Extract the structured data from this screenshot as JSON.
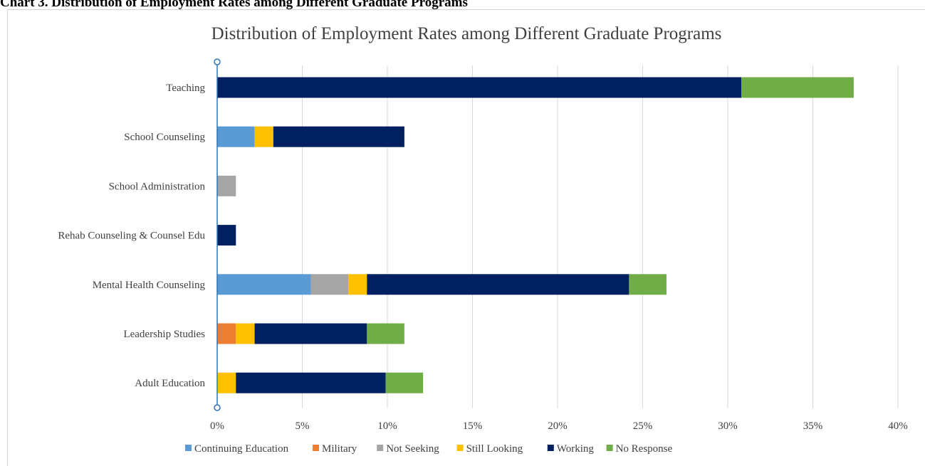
{
  "doc_caption": "Chart 3. Distribution of Employment Rates among Different Graduate Programs",
  "colors": {
    "Continuing Education": "#5b9bd5",
    "Military": "#ed7d31",
    "Not Seeking": "#a5a5a5",
    "Still Looking": "#ffc000",
    "Working": "#002060",
    "No Response": "#70ad47"
  },
  "chart_data": {
    "type": "bar",
    "orientation": "horizontal",
    "stacked": true,
    "title": "Distribution of Employment Rates among Different Graduate Programs",
    "xlabel": "",
    "ylabel": "",
    "xlim": [
      0,
      40
    ],
    "x_ticks": [
      "0%",
      "5%",
      "10%",
      "15%",
      "20%",
      "25%",
      "30%",
      "35%",
      "40%"
    ],
    "x_tick_values": [
      0,
      5,
      10,
      15,
      20,
      25,
      30,
      35,
      40
    ],
    "grid": true,
    "legend_position": "bottom",
    "categories": [
      "Teaching",
      "School Counseling",
      "School Administration",
      "Rehab Counseling & Counsel Edu",
      "Mental Health Counseling",
      "Leadership Studies",
      "Adult Education"
    ],
    "series": [
      {
        "name": "Continuing Education",
        "values": [
          0,
          2.2,
          0,
          0,
          5.5,
          0,
          0
        ]
      },
      {
        "name": "Military",
        "values": [
          0,
          0,
          0,
          0,
          0,
          1.1,
          0
        ]
      },
      {
        "name": "Not Seeking",
        "values": [
          0,
          0,
          1.1,
          0,
          2.2,
          0,
          0
        ]
      },
      {
        "name": "Still Looking",
        "values": [
          0,
          1.1,
          0,
          0,
          1.1,
          1.1,
          1.1
        ]
      },
      {
        "name": "Working",
        "values": [
          30.8,
          7.7,
          0,
          1.1,
          15.4,
          6.6,
          8.8
        ]
      },
      {
        "name": "No Response",
        "values": [
          6.6,
          0,
          0,
          0,
          2.2,
          2.2,
          2.2
        ]
      }
    ]
  }
}
